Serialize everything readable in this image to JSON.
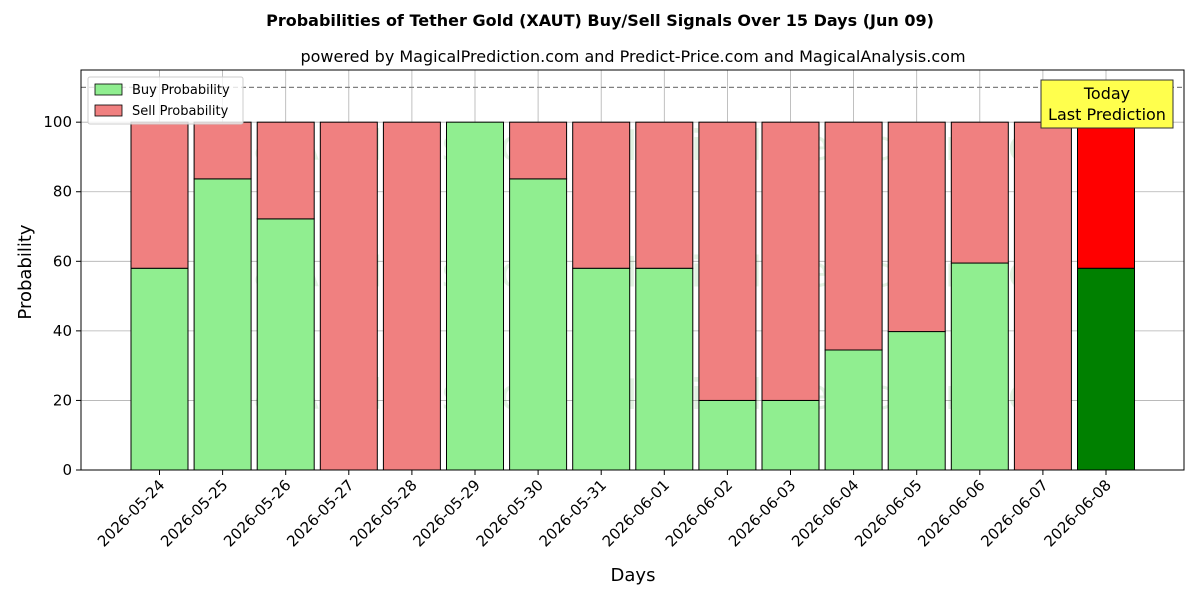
{
  "chart_data": {
    "type": "bar",
    "stacked": true,
    "title": "Probabilities of Tether Gold (XAUT) Buy/Sell Signals Over 15 Days (Jun 09)",
    "subtitle": "powered by MagicalPrediction.com and Predict-Price.com and MagicalAnalysis.com",
    "xlabel": "Days",
    "ylabel": "Probability",
    "ylim": [
      0,
      115
    ],
    "yticks": [
      0,
      20,
      40,
      60,
      80,
      100
    ],
    "grid": true,
    "legend_position": "top-left",
    "reference_line": 110,
    "categories": [
      "2026-05-24",
      "2026-05-25",
      "2026-05-26",
      "2026-05-27",
      "2026-05-28",
      "2026-05-29",
      "2026-05-30",
      "2026-05-31",
      "2026-06-01",
      "2026-06-02",
      "2026-06-03",
      "2026-06-04",
      "2026-06-05",
      "2026-06-06",
      "2026-06-07",
      "2026-06-08"
    ],
    "series": [
      {
        "name": "Buy Probability",
        "color": "#90ee90",
        "values": [
          58,
          83.7,
          72.2,
          0,
          0,
          100,
          83.7,
          58,
          58,
          20,
          20,
          34.5,
          39.8,
          59.5,
          0,
          58
        ]
      },
      {
        "name": "Sell Probability",
        "color": "#f08080",
        "values": [
          42,
          16.3,
          27.8,
          100,
          100,
          0,
          16.3,
          42,
          42,
          80,
          80,
          65.5,
          60.2,
          40.5,
          100,
          42
        ]
      }
    ],
    "highlight": {
      "index": 15,
      "buy_color": "#008000",
      "sell_color": "#ff0000"
    },
    "annotation": {
      "line1": "Today",
      "line2": "Last Prediction",
      "background": "#ffff4d"
    },
    "watermarks": [
      "MagicalAnalysis.com",
      "MagicalPrediction.com"
    ]
  }
}
